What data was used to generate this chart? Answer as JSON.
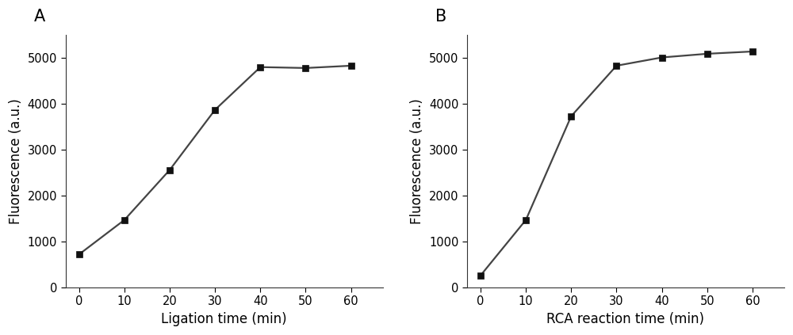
{
  "panel_A": {
    "label": "A",
    "x_data": [
      0,
      10,
      20,
      30,
      40,
      50,
      60
    ],
    "y_data": [
      720,
      1470,
      2560,
      3870,
      4800,
      4780,
      4830
    ],
    "y_err": [
      30,
      35,
      40,
      50,
      55,
      45,
      55
    ],
    "xlabel": "Ligation time (min)",
    "ylabel": "Fluorescence (a.u.)",
    "xlim": [
      -3,
      67
    ],
    "ylim": [
      0,
      5500
    ],
    "yticks": [
      0,
      1000,
      2000,
      3000,
      4000,
      5000
    ],
    "xticks": [
      0,
      10,
      20,
      30,
      40,
      50,
      60
    ],
    "sigmoid_p0": [
      4200,
      28,
      0.18,
      650
    ]
  },
  "panel_B": {
    "label": "B",
    "x_data": [
      0,
      10,
      20,
      30,
      40,
      50,
      60
    ],
    "y_data": [
      260,
      1470,
      3730,
      4830,
      5010,
      5090,
      5140
    ],
    "y_err": [
      20,
      45,
      55,
      55,
      40,
      38,
      45
    ],
    "xlabel": "RCA reaction time (min)",
    "ylabel": "Fluorescence (a.u.)",
    "xlim": [
      -3,
      67
    ],
    "ylim": [
      0,
      5500
    ],
    "yticks": [
      0,
      1000,
      2000,
      3000,
      4000,
      5000
    ],
    "xticks": [
      0,
      10,
      20,
      30,
      40,
      50,
      60
    ],
    "sigmoid_p0": [
      4900,
      22,
      0.25,
      220
    ]
  },
  "marker": "s",
  "marker_size": 5.5,
  "marker_color": "#111111",
  "line_color": "#444444",
  "line_width": 1.6,
  "capsize": 2.5,
  "elinewidth": 1.0,
  "label_fontsize": 12,
  "tick_fontsize": 10.5,
  "panel_label_fontsize": 15,
  "background_color": "#ffffff"
}
